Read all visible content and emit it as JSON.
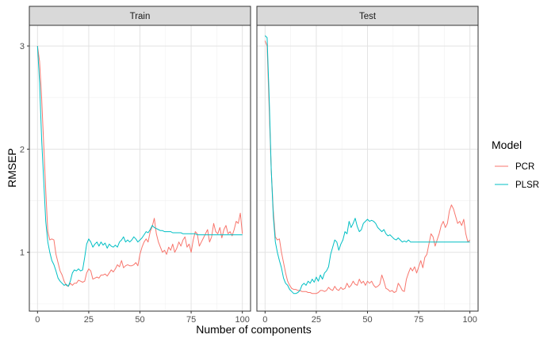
{
  "chart_data": {
    "type": "line",
    "xlabel": "Number of components",
    "ylabel": "RMSEP",
    "xlim": [
      -4,
      104
    ],
    "ylim": [
      0.43,
      3.2
    ],
    "x_ticks": [
      0,
      25,
      50,
      75,
      100
    ],
    "y_ticks": [
      1,
      2,
      3
    ],
    "grid": true,
    "legend": {
      "title": "Model",
      "position": "right"
    },
    "panels": [
      {
        "title": "Train",
        "series": [
          {
            "name": "PCR",
            "color": "#F8766D",
            "x": [
              0,
              1,
              2,
              3,
              4,
              5,
              6,
              7,
              8,
              9,
              10,
              11,
              12,
              13,
              14,
              15,
              16,
              17,
              18,
              19,
              20,
              21,
              22,
              23,
              24,
              25,
              26,
              27,
              28,
              29,
              30,
              31,
              32,
              33,
              34,
              35,
              36,
              37,
              38,
              39,
              40,
              41,
              42,
              43,
              44,
              45,
              46,
              47,
              48,
              49,
              50,
              51,
              52,
              53,
              54,
              55,
              56,
              57,
              58,
              59,
              60,
              61,
              62,
              63,
              64,
              65,
              66,
              67,
              68,
              69,
              70,
              71,
              72,
              73,
              74,
              75,
              76,
              77,
              78,
              79,
              80,
              81,
              82,
              83,
              84,
              85,
              86,
              87,
              88,
              89,
              90,
              91,
              92,
              93,
              94,
              95,
              96,
              97,
              98,
              99,
              100
            ],
            "y": [
              3.0,
              2.85,
              2.5,
              2.05,
              1.6,
              1.2,
              1.12,
              1.13,
              1.12,
              0.98,
              0.9,
              0.82,
              0.78,
              0.72,
              0.68,
              0.67,
              0.7,
              0.68,
              0.7,
              0.7,
              0.73,
              0.72,
              0.71,
              0.72,
              0.8,
              0.84,
              0.82,
              0.74,
              0.75,
              0.76,
              0.75,
              0.78,
              0.78,
              0.79,
              0.77,
              0.8,
              0.83,
              0.81,
              0.84,
              0.88,
              0.86,
              0.92,
              0.85,
              0.87,
              0.88,
              0.87,
              0.87,
              0.88,
              0.9,
              0.87,
              0.98,
              1.05,
              1.1,
              1.13,
              1.1,
              1.2,
              1.25,
              1.33,
              1.18,
              1.1,
              1.05,
              1.0,
              1.02,
              0.98,
              1.05,
              1.02,
              1.08,
              1.0,
              1.04,
              1.1,
              1.06,
              1.12,
              1.15,
              1.05,
              1.08,
              1.0,
              1.12,
              1.2,
              1.18,
              1.06,
              1.1,
              1.14,
              1.18,
              1.22,
              1.1,
              1.15,
              1.28,
              1.2,
              1.18,
              1.24,
              1.14,
              1.22,
              1.26,
              1.18,
              1.2,
              1.16,
              1.22,
              1.3,
              1.28,
              1.38,
              1.18
            ]
          },
          {
            "name": "PLSR",
            "color": "#00BFC4",
            "x": [
              0,
              1,
              2,
              3,
              4,
              5,
              6,
              7,
              8,
              9,
              10,
              11,
              12,
              13,
              14,
              15,
              16,
              17,
              18,
              19,
              20,
              21,
              22,
              23,
              24,
              25,
              26,
              27,
              28,
              29,
              30,
              31,
              32,
              33,
              34,
              35,
              36,
              37,
              38,
              39,
              40,
              41,
              42,
              43,
              44,
              45,
              46,
              47,
              48,
              49,
              50,
              51,
              52,
              53,
              54,
              55,
              56,
              57,
              58,
              59,
              60,
              61,
              62,
              63,
              64,
              65,
              66,
              67,
              68,
              69,
              70,
              71,
              72,
              73,
              74,
              75,
              76,
              77,
              78,
              79,
              80,
              81,
              82,
              83,
              84,
              85,
              86,
              87,
              88,
              89,
              90,
              91,
              92,
              93,
              94,
              95,
              96,
              97,
              98,
              99,
              100
            ],
            "y": [
              3.0,
              2.65,
              2.1,
              1.7,
              1.3,
              1.1,
              1.0,
              0.92,
              0.88,
              0.82,
              0.75,
              0.72,
              0.7,
              0.68,
              0.69,
              0.67,
              0.72,
              0.8,
              0.83,
              0.82,
              0.84,
              0.82,
              0.83,
              0.95,
              1.08,
              1.13,
              1.1,
              1.05,
              1.08,
              1.1,
              1.06,
              1.1,
              1.07,
              1.09,
              1.04,
              1.08,
              1.06,
              1.05,
              1.07,
              1.05,
              1.1,
              1.12,
              1.15,
              1.1,
              1.12,
              1.1,
              1.12,
              1.15,
              1.13,
              1.1,
              1.12,
              1.14,
              1.17,
              1.2,
              1.19,
              1.22,
              1.26,
              1.24,
              1.23,
              1.22,
              1.21,
              1.21,
              1.2,
              1.2,
              1.2,
              1.2,
              1.19,
              1.19,
              1.19,
              1.19,
              1.19,
              1.18,
              1.18,
              1.18,
              1.18,
              1.18,
              1.18,
              1.18,
              1.17,
              1.17,
              1.17,
              1.17,
              1.17,
              1.17,
              1.17,
              1.17,
              1.17,
              1.17,
              1.17,
              1.17,
              1.17,
              1.17,
              1.17,
              1.17,
              1.17,
              1.17,
              1.17,
              1.17,
              1.17,
              1.17,
              1.17
            ]
          }
        ]
      },
      {
        "title": "Test",
        "series": [
          {
            "name": "PCR",
            "color": "#F8766D",
            "x": [
              0,
              1,
              2,
              3,
              4,
              5,
              6,
              7,
              8,
              9,
              10,
              11,
              12,
              13,
              14,
              15,
              16,
              17,
              18,
              19,
              20,
              21,
              22,
              23,
              24,
              25,
              26,
              27,
              28,
              29,
              30,
              31,
              32,
              33,
              34,
              35,
              36,
              37,
              38,
              39,
              40,
              41,
              42,
              43,
              44,
              45,
              46,
              47,
              48,
              49,
              50,
              51,
              52,
              53,
              54,
              55,
              56,
              57,
              58,
              59,
              60,
              61,
              62,
              63,
              64,
              65,
              66,
              67,
              68,
              69,
              70,
              71,
              72,
              73,
              74,
              75,
              76,
              77,
              78,
              79,
              80,
              81,
              82,
              83,
              84,
              85,
              86,
              87,
              88,
              89,
              90,
              91,
              92,
              93,
              94,
              95,
              96,
              97,
              98,
              99,
              100
            ],
            "y": [
              3.05,
              3.0,
              2.4,
              1.8,
              1.4,
              1.15,
              1.12,
              1.13,
              1.0,
              0.9,
              0.8,
              0.72,
              0.68,
              0.65,
              0.64,
              0.64,
              0.63,
              0.63,
              0.62,
              0.62,
              0.62,
              0.61,
              0.61,
              0.6,
              0.6,
              0.6,
              0.61,
              0.63,
              0.63,
              0.62,
              0.63,
              0.66,
              0.64,
              0.63,
              0.67,
              0.64,
              0.63,
              0.66,
              0.64,
              0.65,
              0.7,
              0.66,
              0.68,
              0.72,
              0.69,
              0.68,
              0.74,
              0.7,
              0.72,
              0.68,
              0.72,
              0.7,
              0.72,
              0.68,
              0.66,
              0.67,
              0.69,
              0.78,
              0.72,
              0.65,
              0.64,
              0.62,
              0.63,
              0.61,
              0.62,
              0.7,
              0.67,
              0.63,
              0.62,
              0.74,
              0.8,
              0.85,
              0.82,
              0.86,
              0.8,
              0.86,
              0.92,
              0.85,
              0.95,
              0.98,
              1.08,
              1.18,
              1.15,
              1.06,
              1.12,
              1.18,
              1.26,
              1.3,
              1.24,
              1.28,
              1.4,
              1.46,
              1.42,
              1.35,
              1.28,
              1.3,
              1.26,
              1.32,
              1.18,
              1.1,
              1.12
            ]
          },
          {
            "name": "PLSR",
            "color": "#00BFC4",
            "x": [
              0,
              1,
              2,
              3,
              4,
              5,
              6,
              7,
              8,
              9,
              10,
              11,
              12,
              13,
              14,
              15,
              16,
              17,
              18,
              19,
              20,
              21,
              22,
              23,
              24,
              25,
              26,
              27,
              28,
              29,
              30,
              31,
              32,
              33,
              34,
              35,
              36,
              37,
              38,
              39,
              40,
              41,
              42,
              43,
              44,
              45,
              46,
              47,
              48,
              49,
              50,
              51,
              52,
              53,
              54,
              55,
              56,
              57,
              58,
              59,
              60,
              61,
              62,
              63,
              64,
              65,
              66,
              67,
              68,
              69,
              70,
              71,
              72,
              73,
              74,
              75,
              76,
              77,
              78,
              79,
              80,
              81,
              82,
              83,
              84,
              85,
              86,
              87,
              88,
              89,
              90,
              91,
              92,
              93,
              94,
              95,
              96,
              97,
              98,
              99,
              100
            ],
            "y": [
              3.1,
              3.08,
              2.5,
              1.8,
              1.35,
              1.1,
              1.0,
              0.92,
              0.85,
              0.75,
              0.7,
              0.68,
              0.64,
              0.62,
              0.6,
              0.6,
              0.61,
              0.63,
              0.68,
              0.7,
              0.68,
              0.72,
              0.7,
              0.74,
              0.71,
              0.76,
              0.72,
              0.78,
              0.74,
              0.8,
              0.82,
              0.86,
              0.98,
              1.05,
              1.12,
              1.1,
              1.02,
              1.08,
              1.12,
              1.2,
              1.18,
              1.3,
              1.24,
              1.28,
              1.33,
              1.25,
              1.2,
              1.22,
              1.28,
              1.3,
              1.32,
              1.3,
              1.31,
              1.3,
              1.28,
              1.24,
              1.22,
              1.2,
              1.22,
              1.18,
              1.16,
              1.17,
              1.15,
              1.13,
              1.12,
              1.14,
              1.12,
              1.1,
              1.11,
              1.1,
              1.12,
              1.1,
              1.1,
              1.1,
              1.1,
              1.1,
              1.1,
              1.1,
              1.1,
              1.1,
              1.1,
              1.1,
              1.1,
              1.1,
              1.1,
              1.1,
              1.1,
              1.1,
              1.1,
              1.1,
              1.1,
              1.1,
              1.1,
              1.1,
              1.1,
              1.1,
              1.1,
              1.1,
              1.1,
              1.1,
              1.1
            ]
          }
        ]
      }
    ]
  }
}
